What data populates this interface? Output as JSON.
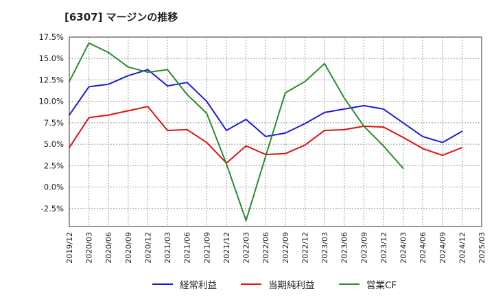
{
  "title": "[6307]  マージンの推移",
  "colors": {
    "blue": "#1a1adc",
    "red": "#e01010",
    "green": "#2a8a2a"
  },
  "chart_data": {
    "type": "line",
    "title": "[6307]  マージンの推移",
    "xlabel": "",
    "ylabel": "",
    "x": [
      "2019/12",
      "2020/03",
      "2020/06",
      "2020/09",
      "2020/12",
      "2021/03",
      "2021/06",
      "2021/09",
      "2021/12",
      "2022/03",
      "2022/06",
      "2022/09",
      "2022/12",
      "2023/03",
      "2023/06",
      "2023/09",
      "2023/12",
      "2024/03",
      "2024/06",
      "2024/09",
      "2024/12",
      "2025/03"
    ],
    "yticks": [
      "17.5%",
      "15.0%",
      "12.5%",
      "10.0%",
      "7.5%",
      "5.0%",
      "2.5%",
      "0.0%",
      "-2.5%"
    ],
    "ylim": [
      -4.6,
      17.5
    ],
    "grid": true,
    "legend_position": "bottom",
    "series": [
      {
        "name": "経常利益",
        "color": "#1a1adc",
        "values": [
          8.4,
          11.7,
          12.0,
          13.0,
          13.7,
          11.8,
          12.2,
          10.0,
          6.6,
          7.9,
          5.9,
          6.3,
          7.4,
          8.7,
          9.1,
          9.5,
          9.1,
          7.5,
          5.9,
          5.2,
          6.5,
          null
        ]
      },
      {
        "name": "当期純利益",
        "color": "#e01010",
        "values": [
          4.6,
          8.1,
          8.4,
          8.9,
          9.4,
          6.6,
          6.7,
          5.2,
          2.8,
          4.8,
          3.8,
          3.9,
          4.9,
          6.6,
          6.7,
          7.1,
          7.0,
          5.8,
          4.5,
          3.7,
          4.6,
          null
        ]
      },
      {
        "name": "営業CF",
        "color": "#2a8a2a",
        "values": [
          12.3,
          16.8,
          15.7,
          14.0,
          13.4,
          13.7,
          10.8,
          8.6,
          2.7,
          -3.9,
          3.6,
          11.0,
          12.3,
          14.4,
          10.4,
          7.1,
          4.8,
          2.2,
          null,
          null,
          null,
          null
        ]
      }
    ]
  }
}
